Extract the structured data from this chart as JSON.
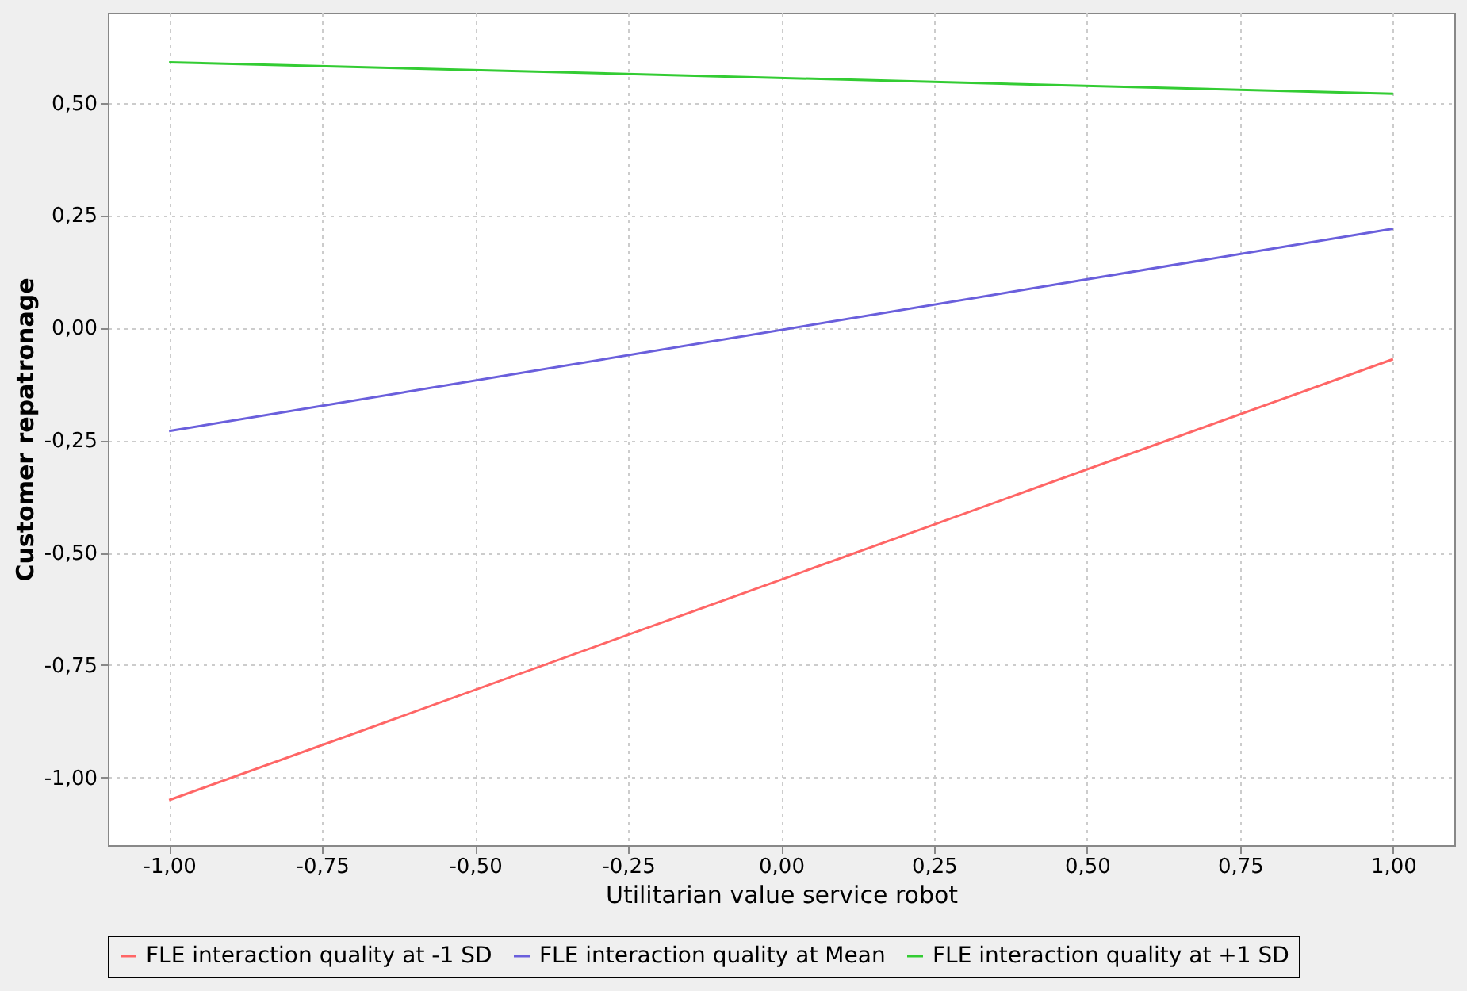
{
  "chart_data": {
    "type": "line",
    "xlabel": "Utilitarian value service robot",
    "ylabel": "Customer repatronage",
    "x": [
      -1,
      1
    ],
    "series": [
      {
        "name": "FLE interaction quality at -1 SD",
        "color": "#ff6666",
        "values": [
          -1.05,
          -0.07
        ]
      },
      {
        "name": "FLE interaction quality at Mean",
        "color": "#6a5fdc",
        "values": [
          -0.23,
          0.22
        ]
      },
      {
        "name": "FLE interaction quality at +1 SD",
        "color": "#33cc33",
        "values": [
          0.59,
          0.52
        ]
      }
    ],
    "xlim": [
      -1.1,
      1.1
    ],
    "ylim": [
      -1.15,
      0.7
    ],
    "xticks": [
      {
        "value": -1,
        "label": "-1,00"
      },
      {
        "value": -0.75,
        "label": "-0,75"
      },
      {
        "value": -0.5,
        "label": "-0,50"
      },
      {
        "value": -0.25,
        "label": "-0,25"
      },
      {
        "value": 0,
        "label": "0,00"
      },
      {
        "value": 0.25,
        "label": "0,25"
      },
      {
        "value": 0.5,
        "label": "0,50"
      },
      {
        "value": 0.75,
        "label": "0,75"
      },
      {
        "value": 1,
        "label": "1,00"
      }
    ],
    "yticks": [
      {
        "value": -1,
        "label": "-1,00"
      },
      {
        "value": -0.75,
        "label": "-0,75"
      },
      {
        "value": -0.5,
        "label": "-0,50"
      },
      {
        "value": -0.25,
        "label": "-0,25"
      },
      {
        "value": 0,
        "label": "0,00"
      },
      {
        "value": 0.25,
        "label": "0,25"
      },
      {
        "value": 0.5,
        "label": "0,50"
      }
    ],
    "grid": true,
    "legend": "bottom",
    "marker": "none",
    "line_style": "solid"
  }
}
